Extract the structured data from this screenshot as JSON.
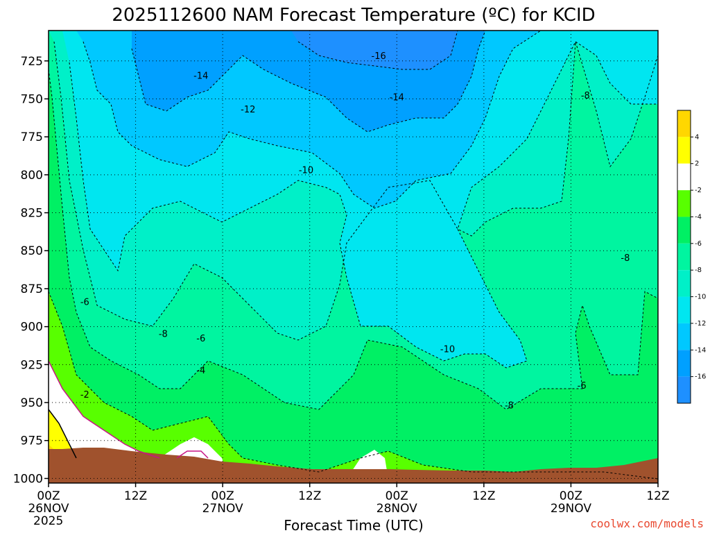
{
  "chart_data": {
    "type": "contour",
    "title": "2025112600 NAM Forecast Temperature (ºC) for KCID",
    "xlabel": "Forecast Time (UTC)",
    "ylabel": "",
    "credit": "coolwx.com/models",
    "y_axis": {
      "ticks": [
        "725",
        "750",
        "775",
        "800",
        "825",
        "850",
        "875",
        "900",
        "925",
        "950",
        "975",
        "1000"
      ],
      "range": [
        705,
        1003
      ],
      "inverted": true
    },
    "x_axis": {
      "range_hours": [
        0,
        84
      ],
      "ticks": [
        {
          "hour": 0,
          "line1": "00Z",
          "line2": "26NOV",
          "line3": "2025"
        },
        {
          "hour": 12,
          "line1": "12Z",
          "line2": "",
          "line3": ""
        },
        {
          "hour": 24,
          "line1": "00Z",
          "line2": "27NOV",
          "line3": ""
        },
        {
          "hour": 36,
          "line1": "12Z",
          "line2": "",
          "line3": ""
        },
        {
          "hour": 48,
          "line1": "00Z",
          "line2": "28NOV",
          "line3": ""
        },
        {
          "hour": 60,
          "line1": "12Z",
          "line2": "",
          "line3": ""
        },
        {
          "hour": 72,
          "line1": "00Z",
          "line2": "29NOV",
          "line3": ""
        },
        {
          "hour": 84,
          "line1": "12Z",
          "line2": "",
          "line3": ""
        }
      ]
    },
    "colorbar": {
      "levels": [
        {
          "min": -18,
          "max": -16,
          "color": "#1e90ff"
        },
        {
          "min": -16,
          "max": -14,
          "color": "#00a0ff"
        },
        {
          "min": -14,
          "max": -12,
          "color": "#00c8ff"
        },
        {
          "min": -12,
          "max": -10,
          "color": "#00e6f0"
        },
        {
          "min": -10,
          "max": -8,
          "color": "#00f0c8"
        },
        {
          "min": -8,
          "max": -6,
          "color": "#00f5a0"
        },
        {
          "min": -6,
          "max": -4,
          "color": "#00f064"
        },
        {
          "min": -4,
          "max": -2,
          "color": "#58ff00"
        },
        {
          "min": -2,
          "max": 2,
          "color": "#ffffff"
        },
        {
          "min": 2,
          "max": 4,
          "color": "#ffff00"
        },
        {
          "min": 4,
          "max": 6,
          "color": "#ffd700"
        }
      ],
      "tick_labels": [
        "4",
        "2",
        "-2",
        "-4",
        "-6",
        "-8",
        "-10",
        "-12",
        "-14",
        "-16"
      ]
    },
    "contour_labels": [
      {
        "text": "-16",
        "hour": 45.5,
        "p": 722
      },
      {
        "text": "-14",
        "hour": 21.0,
        "p": 735
      },
      {
        "text": "-14",
        "hour": 48.0,
        "p": 749
      },
      {
        "text": "-12",
        "hour": 27.5,
        "p": 757
      },
      {
        "text": "-10",
        "hour": 35.5,
        "p": 797
      },
      {
        "text": "-10",
        "hour": 55.0,
        "p": 915
      },
      {
        "text": "-8",
        "hour": 74.0,
        "p": 748
      },
      {
        "text": "-8",
        "hour": 79.5,
        "p": 855
      },
      {
        "text": "-8",
        "hour": 15.8,
        "p": 905
      },
      {
        "text": "-8",
        "hour": 63.5,
        "p": 952
      },
      {
        "text": "-6",
        "hour": 5.0,
        "p": 884
      },
      {
        "text": "-6",
        "hour": 21.0,
        "p": 908
      },
      {
        "text": "-6",
        "hour": 73.5,
        "p": 939
      },
      {
        "text": "-4",
        "hour": 21.0,
        "p": 929
      },
      {
        "text": "-2",
        "hour": 5.0,
        "p": 945
      }
    ],
    "surface_color": "#a0522d",
    "grid": true
  }
}
